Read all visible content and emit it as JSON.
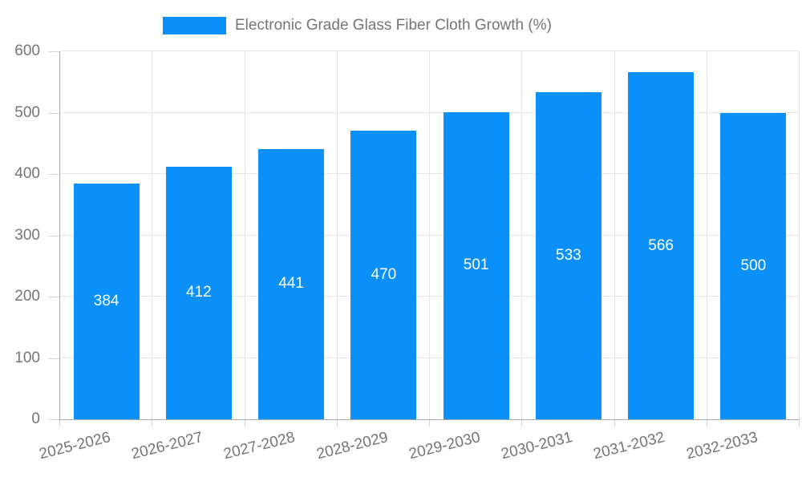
{
  "chart_data": {
    "type": "bar",
    "title": "",
    "legend_label": "Electronic Grade Glass Fiber Cloth Growth (%)",
    "legend_position": "top",
    "categories": [
      "2025-2026",
      "2026-2027",
      "2027-2028",
      "2028-2029",
      "2029-2030",
      "2030-2031",
      "2031-2032",
      "2032-2033"
    ],
    "values": [
      384,
      412,
      441,
      470,
      501,
      533,
      566,
      500
    ],
    "bar_value_labels": [
      "384",
      "412",
      "441",
      "470",
      "501",
      "533",
      "566",
      "500"
    ],
    "xlabel": "",
    "ylabel": "",
    "ylim": [
      0,
      600
    ],
    "yticks": [
      0,
      100,
      200,
      300,
      400,
      500,
      600
    ],
    "grid": true,
    "x_label_rotation_deg": -14
  },
  "colors": {
    "bar": "#0a90f8",
    "axis_line": "#a8a8a8",
    "gridline": "#e6e6e6",
    "tick": "#d4d4d4",
    "axis_text": "#757575",
    "legend_text": "#757575",
    "bar_value_text": "#ffffff",
    "background": "#ffffff"
  }
}
